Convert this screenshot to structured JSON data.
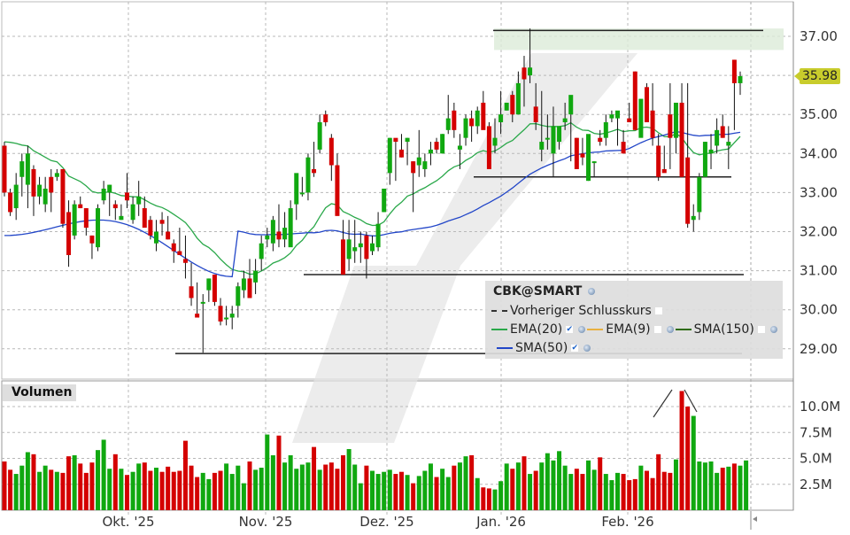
{
  "symbol": "CBK@SMART",
  "last_price_tag": "35.98",
  "legend": {
    "title": "CBK@SMART",
    "prev_close": "Vorheriger Schlusskurs",
    "ema20": "EMA(20)",
    "ema9": "EMA(9)",
    "sma150": "SMA(150)",
    "sma50": "SMA(50)"
  },
  "volume_panel": {
    "title": "Volumen"
  },
  "colors": {
    "up": "#10a810",
    "down": "#d40000",
    "ema20": "#2aa84a",
    "sma50": "#2246c8",
    "ema9": "#e8b040",
    "sma150": "#2e6b10",
    "grid": "#b8b8b8",
    "resistance_zone": "#dcebd8",
    "price_tag": "#c8cc2c"
  },
  "chart_data": [
    {
      "type": "candlestick",
      "title": "CBK@SMART",
      "ylabel": "Price",
      "ylim": [
        28.6,
        37.8
      ],
      "y_ticks": [
        "37.00",
        "36.00",
        "35.00",
        "34.00",
        "33.00",
        "32.00",
        "31.00",
        "30.00",
        "29.00"
      ],
      "x_ticks": [
        "Okt. '25",
        "Nov. '25",
        "Dez. '25",
        "Jan. '26",
        "Feb. '26"
      ],
      "last_price": 35.98,
      "legend_position": "bottom-right",
      "grid": true,
      "series_overlays": [
        "EMA(20)",
        "SMA(50)"
      ],
      "support_resistance_lines": [
        {
          "y": 37.15,
          "x_from": "2026-01-02",
          "x_to": "end"
        },
        {
          "y": 33.4,
          "x_from": "2025-12-22",
          "x_to": "2026-02-24"
        },
        {
          "y": 30.9,
          "x_from": "2025-11-06",
          "x_to": "2026-02-24"
        },
        {
          "y": 28.88,
          "x_from": "2025-10-07",
          "x_to": "2026-02-24"
        }
      ],
      "resistance_zone": {
        "y_from": 36.65,
        "y_to": 37.2
      },
      "ohlc": [
        [
          34.2,
          34.3,
          32.9,
          33.0
        ],
        [
          33.0,
          33.1,
          32.4,
          32.5
        ],
        [
          32.6,
          33.5,
          32.3,
          33.2
        ],
        [
          33.4,
          34.0,
          32.9,
          33.8
        ],
        [
          33.2,
          34.2,
          32.6,
          34.0
        ],
        [
          33.6,
          33.7,
          32.4,
          32.9
        ],
        [
          32.9,
          33.4,
          32.7,
          33.2
        ],
        [
          32.7,
          33.4,
          32.5,
          33.1
        ],
        [
          33.4,
          33.6,
          32.5,
          33.0
        ],
        [
          33.4,
          33.6,
          33.3,
          33.5
        ],
        [
          33.6,
          33.6,
          32.1,
          32.2
        ],
        [
          32.5,
          32.8,
          31.1,
          31.4
        ],
        [
          31.9,
          32.8,
          31.8,
          32.7
        ],
        [
          32.7,
          32.9,
          32.6,
          32.6
        ],
        [
          32.6,
          32.6,
          31.9,
          32.1
        ],
        [
          31.9,
          31.9,
          31.3,
          31.7
        ],
        [
          31.6,
          32.7,
          31.5,
          32.6
        ],
        [
          32.8,
          33.3,
          32.7,
          33.1
        ],
        [
          33.0,
          33.2,
          32.4,
          33.2
        ],
        [
          32.7,
          32.8,
          32.3,
          32.6
        ],
        [
          32.3,
          32.7,
          32.3,
          32.4
        ],
        [
          33.0,
          33.5,
          32.6,
          32.8
        ],
        [
          32.3,
          32.9,
          32.2,
          32.7
        ],
        [
          32.7,
          33.3,
          32.4,
          32.9
        ],
        [
          32.6,
          32.9,
          32.3,
          32.1
        ],
        [
          32.3,
          32.4,
          31.8,
          31.9
        ],
        [
          31.7,
          32.3,
          31.5,
          32.0
        ],
        [
          32.3,
          32.5,
          31.9,
          32.2
        ],
        [
          32.0,
          32.4,
          31.8,
          31.8
        ],
        [
          31.7,
          31.8,
          31.2,
          31.5
        ],
        [
          31.5,
          32.1,
          31.4,
          31.4
        ],
        [
          31.3,
          31.9,
          30.8,
          31.2
        ],
        [
          30.6,
          31.2,
          30.1,
          30.3
        ],
        [
          29.9,
          30.7,
          29.9,
          29.8
        ],
        [
          30.2,
          30.4,
          28.9,
          30.2
        ],
        [
          30.5,
          30.8,
          30.2,
          30.8
        ],
        [
          30.9,
          30.9,
          30.1,
          30.2
        ],
        [
          30.1,
          30.3,
          29.6,
          29.7
        ],
        [
          29.8,
          30.1,
          29.6,
          29.8
        ],
        [
          29.8,
          30.1,
          29.5,
          29.9
        ],
        [
          30.1,
          30.7,
          29.8,
          30.6
        ],
        [
          30.5,
          31.0,
          30.3,
          30.8
        ],
        [
          30.8,
          31.3,
          30.3,
          30.3
        ],
        [
          30.7,
          31.3,
          30.4,
          31.0
        ],
        [
          31.3,
          31.9,
          31.0,
          31.7
        ],
        [
          31.8,
          32.1,
          31.6,
          31.9
        ],
        [
          31.7,
          32.4,
          31.5,
          32.3
        ],
        [
          32.0,
          32.7,
          31.6,
          31.8
        ],
        [
          31.8,
          32.5,
          31.6,
          32.1
        ],
        [
          31.6,
          32.8,
          31.7,
          32.6
        ],
        [
          32.7,
          33.2,
          32.3,
          33.5
        ],
        [
          33.0,
          33.4,
          32.9,
          33.0
        ],
        [
          33.0,
          34.0,
          32.8,
          33.9
        ],
        [
          33.6,
          34.3,
          33.4,
          33.5
        ],
        [
          34.1,
          35.0,
          34.0,
          34.8
        ],
        [
          35.0,
          35.1,
          34.7,
          34.8
        ],
        [
          34.4,
          34.5,
          33.3,
          33.7
        ],
        [
          33.7,
          34.0,
          32.5,
          32.4
        ],
        [
          31.8,
          32.3,
          30.9,
          30.9
        ],
        [
          31.3,
          32.3,
          31.0,
          31.8
        ],
        [
          31.5,
          32.3,
          31.2,
          31.6
        ],
        [
          31.6,
          32.0,
          31.2,
          31.7
        ],
        [
          31.9,
          32.0,
          30.8,
          31.3
        ],
        [
          31.5,
          31.9,
          31.4,
          31.7
        ],
        [
          31.6,
          32.5,
          31.5,
          32.2
        ],
        [
          32.5,
          32.8,
          32.5,
          33.1
        ],
        [
          33.5,
          34.4,
          33.2,
          34.4
        ],
        [
          34.4,
          34.3,
          33.3,
          34.3
        ],
        [
          34.1,
          34.5,
          33.9,
          33.9
        ],
        [
          34.3,
          34.4,
          33.7,
          34.4
        ],
        [
          33.8,
          33.8,
          32.5,
          33.5
        ],
        [
          33.7,
          34.6,
          33.4,
          33.9
        ],
        [
          33.6,
          34.0,
          33.4,
          33.8
        ],
        [
          34.0,
          34.3,
          33.7,
          34.1
        ],
        [
          34.3,
          34.4,
          34.0,
          34.1
        ],
        [
          34.0,
          34.5,
          34.0,
          34.5
        ],
        [
          34.6,
          35.5,
          34.5,
          34.9
        ],
        [
          35.1,
          35.3,
          34.4,
          34.6
        ],
        [
          34.1,
          34.5,
          33.6,
          34.2
        ],
        [
          34.4,
          35.0,
          34.2,
          34.9
        ],
        [
          34.9,
          35.1,
          34.3,
          34.7
        ],
        [
          34.7,
          35.2,
          34.5,
          35.1
        ],
        [
          35.3,
          35.6,
          34.7,
          34.6
        ],
        [
          34.7,
          34.8,
          33.8,
          33.6
        ],
        [
          34.2,
          34.9,
          34.0,
          34.4
        ],
        [
          34.8,
          35.6,
          34.5,
          35.0
        ],
        [
          35.1,
          35.3,
          35.1,
          35.3
        ],
        [
          35.5,
          35.6,
          34.8,
          35.0
        ],
        [
          35.0,
          36.1,
          35.0,
          35.8
        ],
        [
          36.2,
          36.5,
          35.2,
          35.9
        ],
        [
          36.0,
          37.2,
          35.8,
          36.2
        ],
        [
          35.2,
          35.8,
          34.6,
          34.8
        ],
        [
          34.1,
          35.6,
          33.8,
          34.3
        ],
        [
          34.4,
          35.0,
          34.1,
          34.4
        ],
        [
          34.0,
          35.2,
          33.4,
          34.7
        ],
        [
          34.3,
          34.5,
          34.1,
          34.7
        ],
        [
          34.8,
          35.3,
          34.6,
          34.9
        ],
        [
          35.0,
          35.0,
          33.8,
          35.5
        ],
        [
          34.4,
          34.4,
          34.1,
          33.6
        ],
        [
          34.0,
          34.4,
          33.7,
          33.9
        ],
        [
          33.3,
          33.4,
          33.3,
          34.5
        ],
        [
          33.8,
          33.8,
          33.4,
          33.8
        ],
        [
          34.4,
          34.6,
          34.2,
          34.3
        ],
        [
          34.4,
          35.0,
          34.2,
          34.8
        ],
        [
          34.9,
          35.1,
          34.8,
          35.0
        ],
        [
          34.9,
          35.0,
          34.2,
          35.1
        ],
        [
          34.3,
          34.6,
          34.0,
          34.0
        ],
        [
          34.9,
          35.3,
          34.8,
          34.8
        ],
        [
          36.1,
          36.1,
          35.3,
          34.6
        ],
        [
          34.4,
          35.0,
          34.6,
          35.4
        ],
        [
          35.7,
          35.8,
          35.1,
          34.8
        ],
        [
          35.1,
          35.8,
          34.2,
          34.4
        ],
        [
          34.2,
          34.5,
          33.3,
          33.4
        ],
        [
          33.6,
          33.6,
          34.2,
          33.5
        ],
        [
          35.0,
          35.8,
          33.6,
          34.4
        ],
        [
          34.4,
          35.0,
          34.0,
          35.3
        ],
        [
          35.3,
          35.8,
          33.4,
          33.4
        ],
        [
          33.9,
          35.8,
          32.1,
          32.2
        ],
        [
          32.3,
          32.7,
          32.0,
          32.4
        ],
        [
          32.5,
          33.5,
          32.3,
          33.4
        ],
        [
          33.4,
          34.3,
          33.4,
          34.3
        ],
        [
          34.0,
          34.5,
          33.6,
          34.1
        ],
        [
          34.2,
          34.9,
          34.0,
          34.6
        ],
        [
          34.7,
          35.0,
          34.4,
          34.4
        ],
        [
          34.2,
          34.7,
          33.6,
          34.3
        ],
        [
          36.4,
          36.4,
          34.6,
          35.8
        ],
        [
          35.8,
          36.1,
          35.5,
          35.98
        ]
      ],
      "volume": {
        "ylabel": "Volumen",
        "y_ticks": [
          "10.0M",
          "7.5M",
          "5.0M",
          "2.5M"
        ],
        "values_m": [
          4.7,
          3.9,
          3.5,
          4.3,
          5.6,
          5.4,
          3.7,
          4.3,
          3.9,
          3.7,
          3.6,
          5.2,
          5.3,
          4.5,
          3.6,
          4.6,
          5.8,
          6.8,
          4.0,
          5.4,
          4.0,
          3.4,
          3.7,
          4.5,
          4.6,
          3.8,
          4.1,
          3.7,
          4.2,
          3.7,
          3.8,
          6.7,
          4.3,
          3.2,
          3.6,
          3.0,
          3.6,
          3.8,
          4.5,
          3.5,
          4.3,
          2.6,
          4.7,
          3.9,
          4.1,
          7.3,
          5.3,
          7.2,
          4.6,
          5.3,
          4.0,
          4.4,
          4.6,
          6.1,
          3.9,
          4.4,
          4.6,
          4.0,
          5.3,
          5.9,
          4.4,
          2.6,
          4.3,
          3.8,
          3.5,
          3.7,
          3.9,
          3.5,
          3.7,
          3.4,
          2.6,
          3.3,
          3.8,
          4.5,
          3.2,
          4.0,
          3.2,
          4.3,
          4.6,
          5.2,
          5.3,
          3.1,
          2.2,
          2.1,
          2.0,
          2.8,
          4.5,
          4.0,
          4.6,
          5.2,
          3.5,
          3.8,
          4.6,
          5.5,
          4.8,
          5.7,
          4.3,
          3.5,
          4.0,
          3.5,
          4.8,
          3.9,
          5.1,
          3.5,
          2.9,
          3.6,
          3.5,
          2.9,
          3.0,
          4.3,
          3.8,
          3.1,
          5.4,
          3.7,
          3.6,
          4.9,
          11.5,
          10.0,
          9.1,
          4.7,
          4.6,
          4.7,
          3.6,
          4.1,
          4.2,
          4.5,
          4.3,
          4.8
        ]
      }
    }
  ]
}
